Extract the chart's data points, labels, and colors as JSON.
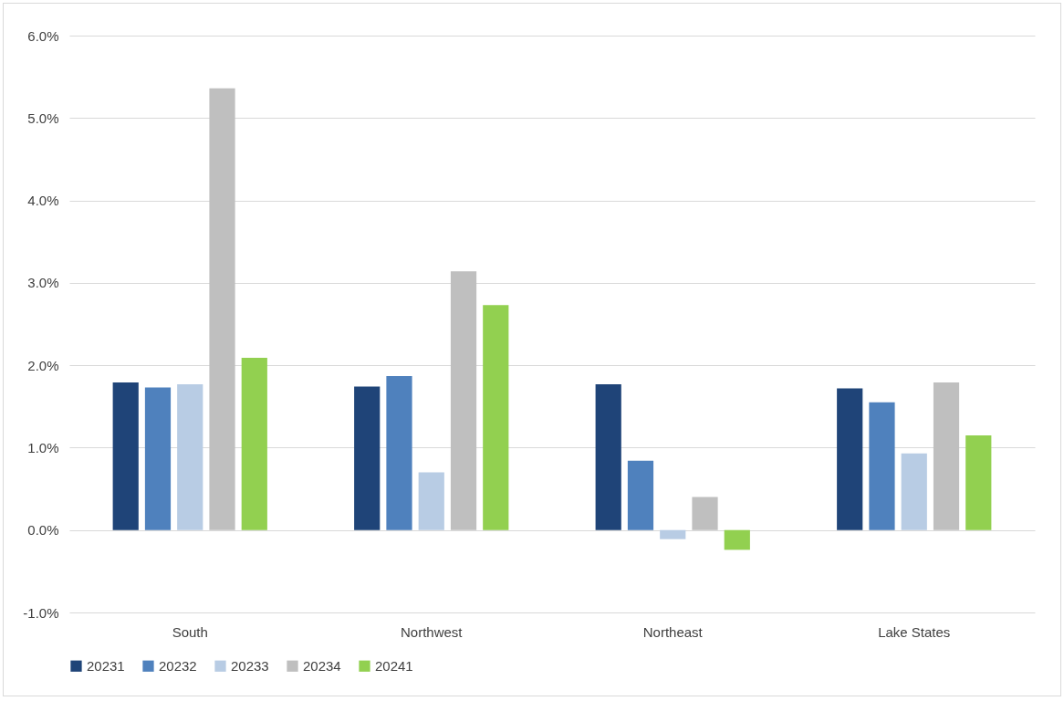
{
  "chart_data": {
    "type": "bar",
    "categories": [
      "South",
      "Northwest",
      "Northeast",
      "Lake States"
    ],
    "series": [
      {
        "name": "20231",
        "color": "#1f4478",
        "values": [
          1.79,
          1.74,
          1.77,
          1.72
        ]
      },
      {
        "name": "20232",
        "color": "#4f81bd",
        "values": [
          1.73,
          1.87,
          0.84,
          1.55
        ]
      },
      {
        "name": "20233",
        "color": "#b8cce4",
        "values": [
          1.77,
          0.7,
          -0.11,
          0.93
        ]
      },
      {
        "name": "20234",
        "color": "#bfbfbf",
        "values": [
          5.36,
          3.14,
          0.4,
          1.79
        ]
      },
      {
        "name": "20241",
        "color": "#92d050",
        "values": [
          2.09,
          2.73,
          -0.24,
          1.15
        ]
      }
    ],
    "ylim": [
      -1,
      6
    ],
    "yticks": [
      {
        "value": -1,
        "label": "-1.0%"
      },
      {
        "value": 0,
        "label": "0.0%"
      },
      {
        "value": 1,
        "label": "1.0%"
      },
      {
        "value": 2,
        "label": "2.0%"
      },
      {
        "value": 3,
        "label": "3.0%"
      },
      {
        "value": 4,
        "label": "4.0%"
      },
      {
        "value": 5,
        "label": "5.0%"
      },
      {
        "value": 6,
        "label": "6.0%"
      }
    ],
    "grid": "y",
    "legend": "bottom"
  }
}
